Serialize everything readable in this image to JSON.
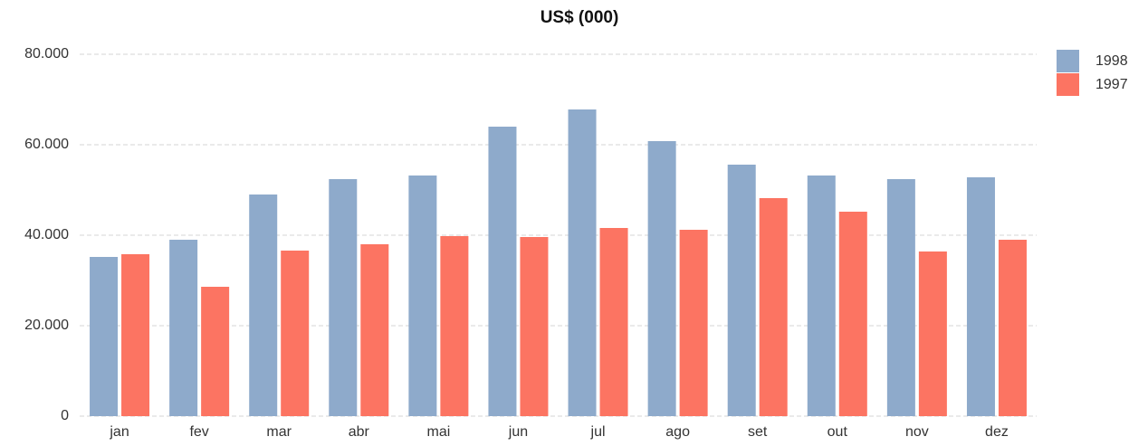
{
  "chart_data": {
    "type": "bar",
    "title": "US$ (000)",
    "categories": [
      "jan",
      "fev",
      "mar",
      "abr",
      "mai",
      "jun",
      "jul",
      "ago",
      "set",
      "out",
      "nov",
      "dez"
    ],
    "series": [
      {
        "name": "1998",
        "color": "#8eaacb",
        "values": [
          35200,
          39000,
          49000,
          52400,
          53200,
          64000,
          67800,
          60800,
          55600,
          53200,
          52400,
          52800
        ]
      },
      {
        "name": "1997",
        "color": "#fc7462",
        "values": [
          35800,
          28600,
          36600,
          38000,
          39800,
          39600,
          41600,
          41200,
          48200,
          45200,
          36400,
          39000
        ]
      }
    ],
    "ylim": [
      0,
      80000
    ],
    "yticks": [
      0,
      {
        "value": 20000,
        "label": "20.000"
      },
      {
        "value": 40000,
        "label": "40.000"
      },
      {
        "value": 60000,
        "label": "60.000"
      },
      {
        "value": 80000,
        "label": "80.000"
      }
    ],
    "grid": true,
    "legend": "top-right"
  }
}
